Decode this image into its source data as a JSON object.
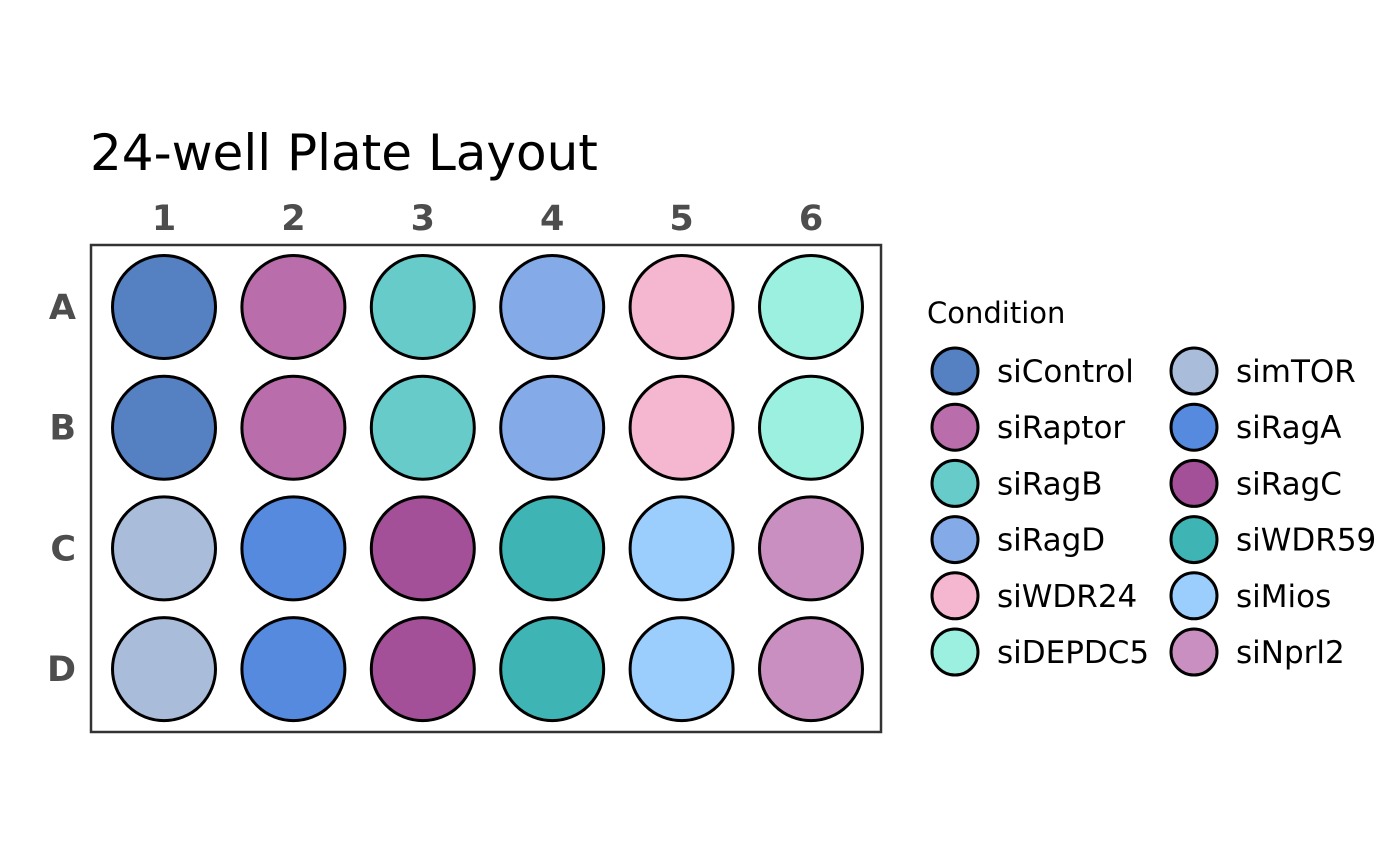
{
  "chart_data": {
    "type": "heatmap",
    "title": "24-well Plate Layout",
    "columns": [
      "1",
      "2",
      "3",
      "4",
      "5",
      "6"
    ],
    "rows": [
      "A",
      "B",
      "C",
      "D"
    ],
    "wells": [
      [
        "siControl",
        "siRaptor",
        "siRagB",
        "siRagD",
        "siWDR24",
        "siDEPDC5"
      ],
      [
        "siControl",
        "siRaptor",
        "siRagB",
        "siRagD",
        "siWDR24",
        "siDEPDC5"
      ],
      [
        "simTOR",
        "siRagA",
        "siRagC",
        "siWDR59",
        "siMios",
        "siNprl2"
      ],
      [
        "simTOR",
        "siRagA",
        "siRagC",
        "siWDR59",
        "siMios",
        "siNprl2"
      ]
    ],
    "legend": {
      "title": "Condition",
      "placement": "right",
      "columns": 2,
      "entries": [
        {
          "name": "siControl",
          "color": "#5580c1"
        },
        {
          "name": "siRaptor",
          "color": "#b96eab"
        },
        {
          "name": "siRagB",
          "color": "#67cbca"
        },
        {
          "name": "siRagD",
          "color": "#84aae8"
        },
        {
          "name": "siWDR24",
          "color": "#f5b7d0"
        },
        {
          "name": "siDEPDC5",
          "color": "#9bf0df"
        },
        {
          "name": "simTOR",
          "color": "#a9bddb"
        },
        {
          "name": "siRagA",
          "color": "#558adf"
        },
        {
          "name": "siRagC",
          "color": "#a45098"
        },
        {
          "name": "siWDR59",
          "color": "#3fb4b5"
        },
        {
          "name": "siMios",
          "color": "#9bcefd"
        },
        {
          "name": "siNprl2",
          "color": "#ca8fc1"
        }
      ]
    }
  }
}
